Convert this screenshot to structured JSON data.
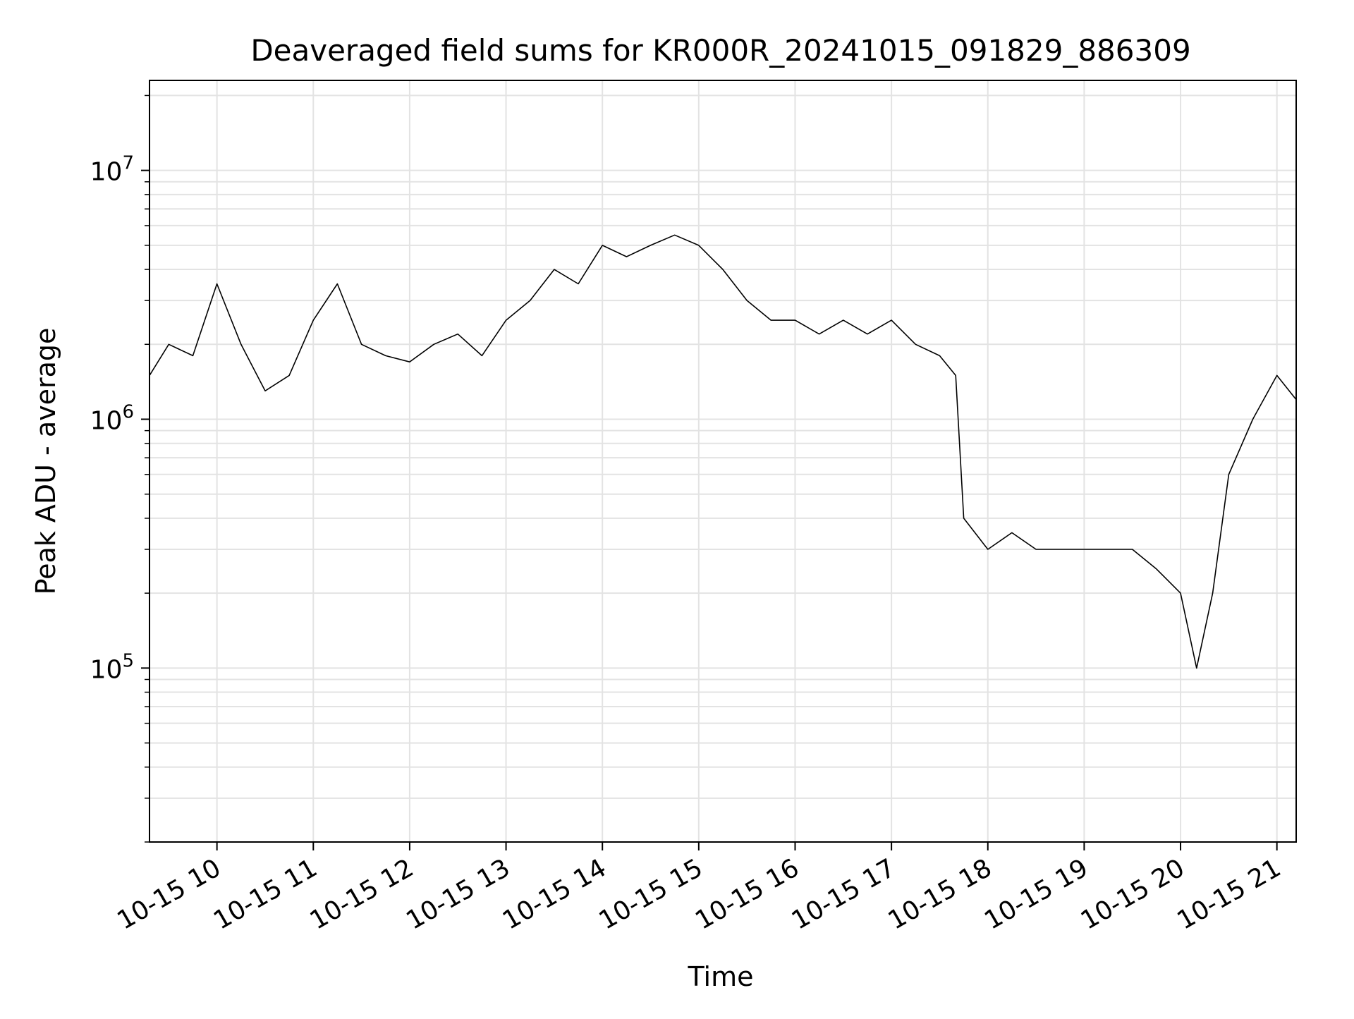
{
  "chart_data": {
    "type": "line",
    "title": "Deaveraged field sums for KR000R_20241015_091829_886309",
    "xlabel": "Time",
    "ylabel": "Peak ADU - average",
    "yscale": "log",
    "xlim": [
      "10-15 09:18",
      "10-15 21:12"
    ],
    "ylim": [
      20000,
      23000000
    ],
    "grid": true,
    "legend": "none",
    "line_color": "#000000",
    "x_ticks": [
      "10-15 10",
      "10-15 11",
      "10-15 12",
      "10-15 13",
      "10-15 14",
      "10-15 15",
      "10-15 16",
      "10-15 17",
      "10-15 18",
      "10-15 19",
      "10-15 20",
      "10-15 21"
    ],
    "y_ticks": [
      {
        "base": "10",
        "exp": "5",
        "value": 100000
      },
      {
        "base": "10",
        "exp": "6",
        "value": 1000000
      },
      {
        "base": "10",
        "exp": "7",
        "value": 10000000
      }
    ],
    "series": [
      {
        "x": [
          "09:18",
          "09:30",
          "09:45",
          "10:00",
          "10:15",
          "10:30",
          "10:45",
          "11:00",
          "11:15",
          "11:30",
          "11:45",
          "12:00",
          "12:15",
          "12:30",
          "12:45",
          "13:00",
          "13:15",
          "13:30",
          "13:45",
          "14:00",
          "14:15",
          "14:30",
          "14:45",
          "15:00",
          "15:15",
          "15:30",
          "15:45",
          "16:00",
          "16:15",
          "16:30",
          "16:45",
          "17:00",
          "17:15",
          "17:30",
          "17:40",
          "17:45",
          "18:00",
          "18:15",
          "18:30",
          "18:45",
          "19:00",
          "19:15",
          "19:30",
          "19:45",
          "20:00",
          "20:10",
          "20:20",
          "20:30",
          "20:45",
          "21:00",
          "21:12"
        ],
        "y": [
          1500000,
          2000000,
          1800000,
          3500000,
          2000000,
          1300000,
          1500000,
          2500000,
          3500000,
          2000000,
          1800000,
          1700000,
          2000000,
          2200000,
          1800000,
          2500000,
          3000000,
          4000000,
          3500000,
          5000000,
          4500000,
          5000000,
          5500000,
          5000000,
          4000000,
          3000000,
          2500000,
          2500000,
          2200000,
          2500000,
          2200000,
          2500000,
          2000000,
          1800000,
          1500000,
          400000,
          300000,
          350000,
          300000,
          300000,
          300000,
          300000,
          300000,
          250000,
          200000,
          100000,
          200000,
          600000,
          1000000,
          1500000,
          1200000
        ]
      }
    ]
  }
}
